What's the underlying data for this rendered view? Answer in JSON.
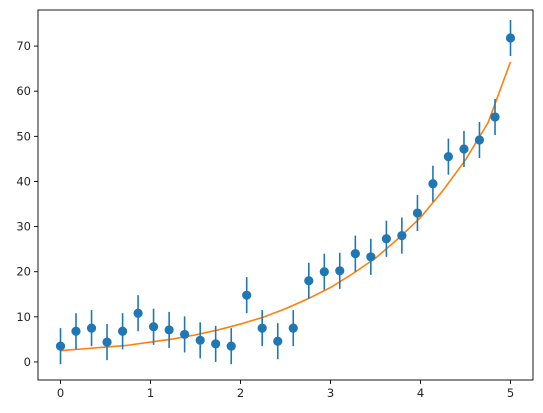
{
  "chart_data": {
    "type": "scatter",
    "title": "",
    "xlabel": "",
    "ylabel": "",
    "xlim": [
      -0.25,
      5.25
    ],
    "ylim": [
      -4,
      78
    ],
    "grid": false,
    "legend": "none",
    "x_ticks": [
      0,
      1,
      2,
      3,
      4,
      5
    ],
    "x_tick_labels": [
      "0",
      "1",
      "2",
      "3",
      "4",
      "5"
    ],
    "y_ticks": [
      0,
      10,
      20,
      30,
      40,
      50,
      60,
      70
    ],
    "y_tick_labels": [
      "0",
      "10",
      "20",
      "30",
      "40",
      "50",
      "60",
      "70"
    ],
    "series": [
      {
        "kind": "errorbar",
        "color": "#1f77b4",
        "x": [
          0.0,
          0.172,
          0.345,
          0.517,
          0.69,
          0.862,
          1.034,
          1.207,
          1.379,
          1.552,
          1.724,
          1.897,
          2.069,
          2.241,
          2.414,
          2.586,
          2.759,
          2.931,
          3.103,
          3.276,
          3.448,
          3.621,
          3.793,
          3.966,
          4.138,
          4.31,
          4.483,
          4.655,
          4.828,
          5.0
        ],
        "y": [
          3.5,
          6.8,
          7.5,
          4.4,
          6.8,
          10.8,
          7.8,
          7.1,
          6.1,
          4.8,
          4.0,
          3.5,
          14.8,
          7.5,
          4.6,
          7.5,
          18.0,
          20.0,
          20.2,
          24.0,
          23.3,
          27.3,
          28.0,
          33.0,
          39.5,
          45.5,
          47.2,
          49.2,
          54.3,
          71.8
        ],
        "yerr": [
          4,
          4,
          4,
          4,
          4,
          4,
          4,
          4,
          4,
          4,
          4,
          4,
          4,
          4,
          4,
          4,
          4,
          4,
          4,
          4,
          4,
          4,
          4,
          4,
          4,
          4,
          4,
          4,
          4,
          4
        ]
      },
      {
        "kind": "line",
        "color": "#ff7f0e",
        "x": [
          0.0,
          0.25,
          0.5,
          0.75,
          1.0,
          1.25,
          1.5,
          1.75,
          2.0,
          2.25,
          2.5,
          2.75,
          3.0,
          3.25,
          3.5,
          3.75,
          4.0,
          4.25,
          4.5,
          4.75,
          5.0
        ],
        "y": [
          2.5,
          2.9,
          3.3,
          3.7,
          4.4,
          5.1,
          6.0,
          7.1,
          8.4,
          9.9,
          11.8,
          14.0,
          16.5,
          19.6,
          23.0,
          27.3,
          32.0,
          38.0,
          44.8,
          53.0,
          66.5
        ]
      }
    ]
  }
}
